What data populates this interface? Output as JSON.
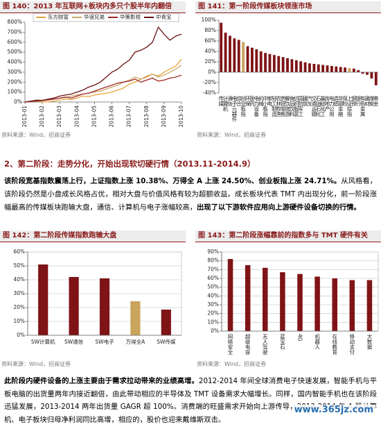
{
  "chart_data": [
    {
      "type": "line",
      "title": "图 140：2013 年互联网+板块内多只个股半年内翻倍",
      "source": "资料来源：Wind，招商证券",
      "categories": [
        "2013-01",
        null,
        null,
        "2013-02",
        null,
        null,
        "2013-03",
        null,
        null,
        "2013-04",
        null,
        null,
        "2013-05",
        null,
        null,
        "2013-06",
        null,
        null,
        "2013-07",
        null,
        null,
        "2013-08",
        null,
        null,
        "2013-09",
        null,
        null,
        "2013-10"
      ],
      "series": [
        {
          "name": "东方财富",
          "color": "#e8a33a",
          "values": [
            0,
            5,
            10,
            2,
            1,
            10,
            20,
            30,
            25,
            40,
            60,
            55,
            70,
            80,
            90,
            100,
            120,
            140,
            180,
            200,
            230,
            250,
            280,
            260,
            300,
            330,
            360,
            430
          ]
        },
        {
          "name": "华谊兄弟",
          "color": "#c9a86a",
          "values": [
            0,
            5,
            15,
            20,
            25,
            30,
            40,
            45,
            60,
            70,
            80,
            90,
            100,
            110,
            130,
            150,
            170,
            200,
            220,
            250,
            230,
            260,
            280,
            250,
            270,
            300,
            330,
            370
          ]
        },
        {
          "name": "华策影视",
          "color": "#a0282a",
          "values": [
            0,
            5,
            10,
            15,
            20,
            30,
            40,
            50,
            40,
            60,
            80,
            90,
            110,
            130,
            150,
            170,
            190,
            200,
            210,
            230,
            200,
            220,
            240,
            210,
            220,
            240,
            250,
            270
          ]
        },
        {
          "name": "中青宝",
          "color": "#6b1010",
          "values": [
            0,
            10,
            20,
            15,
            30,
            40,
            60,
            70,
            80,
            100,
            120,
            150,
            170,
            200,
            250,
            300,
            330,
            380,
            420,
            500,
            520,
            550,
            600,
            750,
            680,
            620,
            660,
            680
          ]
        }
      ],
      "ylim": [
        0,
        800
      ],
      "yticks": [
        {
          "value": 0,
          "label": "0%"
        },
        {
          "value": 100,
          "label": "100%"
        },
        {
          "value": 200,
          "label": "200%"
        },
        {
          "value": 300,
          "label": "300%"
        },
        {
          "value": 400,
          "label": "400%"
        },
        {
          "value": 500,
          "label": "500%"
        },
        {
          "value": 600,
          "label": "600%"
        },
        {
          "value": 700,
          "label": "700%"
        },
        {
          "value": 800,
          "label": "800%"
        }
      ],
      "grid": false,
      "legend": "top"
    },
    {
      "type": "bar",
      "title": "图 141：第一阶段传媒板块领涨市场",
      "source": "资料来源：Wind，招商证券",
      "categories": [
        "传媒",
        "计算机",
        "通信",
        "电子元器件",
        "综合",
        "创业板指",
        "环保",
        "医药",
        "电力设备",
        "机械",
        "中小板指",
        "家电",
        "轻工制造",
        "农林牧渔",
        "商贸零售",
        "餐饮旅游",
        "食品饮料",
        "纺织服装",
        "国防军工",
        "建筑",
        "汽车",
        "交通运输",
        "石油石化",
        "基础化工",
        "房地产",
        "电力公用",
        "造纸",
        "非银金融",
        "保险",
        "上证综指",
        "钢铁",
        "银行",
        "有色金属",
        "建材",
        "煤炭",
        "黄金"
      ],
      "values": [
        95,
        76,
        70,
        65,
        62,
        58,
        50,
        47,
        44,
        40,
        37,
        35,
        33,
        31,
        29,
        27,
        25,
        23,
        21,
        19,
        17,
        16,
        15,
        14,
        13,
        12,
        11,
        10,
        9,
        8,
        7,
        4,
        -3,
        -5,
        -12,
        -25
      ],
      "colors": [
        "#7f1416",
        "#7f1416",
        "#7f1416",
        "#7f1416",
        "#7f1416",
        "#c9a45c",
        "#7f1416",
        "#7f1416",
        "#7f1416",
        "#7f1416",
        "#7f1416",
        "#7f1416",
        "#7f1416",
        "#7f1416",
        "#7f1416",
        "#7f1416",
        "#7f1416",
        "#7f1416",
        "#7f1416",
        "#7f1416",
        "#7f1416",
        "#7f1416",
        "#7f1416",
        "#7f1416",
        "#7f1416",
        "#7f1416",
        "#7f1416",
        "#7f1416",
        "#7f1416",
        "#c9a45c",
        "#7f1416",
        "#7f1416",
        "#7f1416",
        "#7f1416",
        "#7f1416",
        "#7f1416"
      ],
      "ylim": [
        -40,
        100
      ],
      "yticks": [
        {
          "value": -40,
          "label": "-40%"
        },
        {
          "value": -20,
          "label": "-20%"
        },
        {
          "value": 0,
          "label": "0%"
        },
        {
          "value": 20,
          "label": "20%"
        },
        {
          "value": 40,
          "label": "40%"
        },
        {
          "value": 60,
          "label": "60%"
        },
        {
          "value": 80,
          "label": "80%"
        },
        {
          "value": 100,
          "label": "100%"
        }
      ],
      "grid": false
    },
    {
      "type": "bar",
      "title": "图 142：第二阶段传媒指数跑输大盘",
      "source": "资料来源：Wind，招商证券",
      "categories": [
        "SW计算机",
        "SW通信",
        "SW电子",
        "万得全A",
        "SW传媒"
      ],
      "values": [
        51,
        42,
        41,
        24.5,
        18.5
      ],
      "colors": [
        "#7f1416",
        "#7f1416",
        "#7f1416",
        "#c9a45c",
        "#7f1416"
      ],
      "ylim": [
        0,
        60
      ],
      "yticks": [
        {
          "value": 0,
          "label": "0%"
        },
        {
          "value": 10,
          "label": "10%"
        },
        {
          "value": 20,
          "label": "20%"
        },
        {
          "value": 30,
          "label": "30%"
        },
        {
          "value": 40,
          "label": "40%"
        },
        {
          "value": 50,
          "label": "50%"
        },
        {
          "value": 60,
          "label": "60%"
        }
      ],
      "grid": true
    },
    {
      "type": "bar",
      "title": "图 143：第二阶段涨幅靠前的指数多与 TMT 硬件有关",
      "source": "资料来源：Wind，招商证券",
      "categories": [
        "网络安全",
        "超级电容",
        "无人驾驶",
        "蓝宝石",
        "4G",
        "机器人",
        "在线教育",
        "移动支付",
        "大数据"
      ],
      "values": [
        82,
        75,
        72,
        67,
        65,
        62,
        60,
        58,
        58
      ],
      "color": "#7f1416",
      "ylim": [
        0,
        90
      ],
      "yticks": [
        {
          "value": 0,
          "label": "0%"
        },
        {
          "value": 10,
          "label": "10%"
        },
        {
          "value": 20,
          "label": "20%"
        },
        {
          "value": 30,
          "label": "30%"
        },
        {
          "value": 40,
          "label": "40%"
        },
        {
          "value": 50,
          "label": "50%"
        },
        {
          "value": 60,
          "label": "60%"
        },
        {
          "value": 70,
          "label": "70%"
        },
        {
          "value": 80,
          "label": "80%"
        },
        {
          "value": 90,
          "label": "90%"
        }
      ],
      "grid": true
    }
  ],
  "document": {
    "section_heading": "2、第二阶段：走势分化，开始出现软切硬行情（2013.11-2014.9）",
    "paragraphs": [
      {
        "runs": [
          {
            "text": "该阶段宽基指数震荡上行，上证指数上涨 10.38%、万得全 A 上涨 24.50%、创业板指上涨 24.71%。",
            "bold": true
          },
          {
            "text": "从风格看，该阶段仍然是小盘成长风格占优，相对大盘与价值风格有较为超额收益。成长板块代表 TMT 内出现分化，前一阶段涨幅最高的传媒板块跑输大盘，通信、计算机与电子涨幅较高，",
            "bold": false
          },
          {
            "text": "出现了以下游软件应用向上游硬件设备切换的行情。",
            "bold": true
          }
        ]
      },
      {
        "runs": [
          {
            "text": "此阶段内硬件设备的上涨主要由于需求拉动带来的业绩高增。",
            "bold": true
          },
          {
            "text": "2012-2014 年间全球消费电子快速发展，智能手机与平板电脑的出货量两年内接近翻倍，由此带动相应的半导体及 TMT 设备需求大幅增长。同样，国内智能手机也在该阶段迅猛发展，2013-2014 两年出货量 GAGR 超 100%。消费端的旺盛需求开始向上游传导，2013-2014 年 A 股计算机、电子板块归母净利润同比高增，相应的，股价也迎来戴维斯双击。",
            "bold": false
          }
        ]
      }
    ],
    "watermark": "www.365jz.com"
  }
}
